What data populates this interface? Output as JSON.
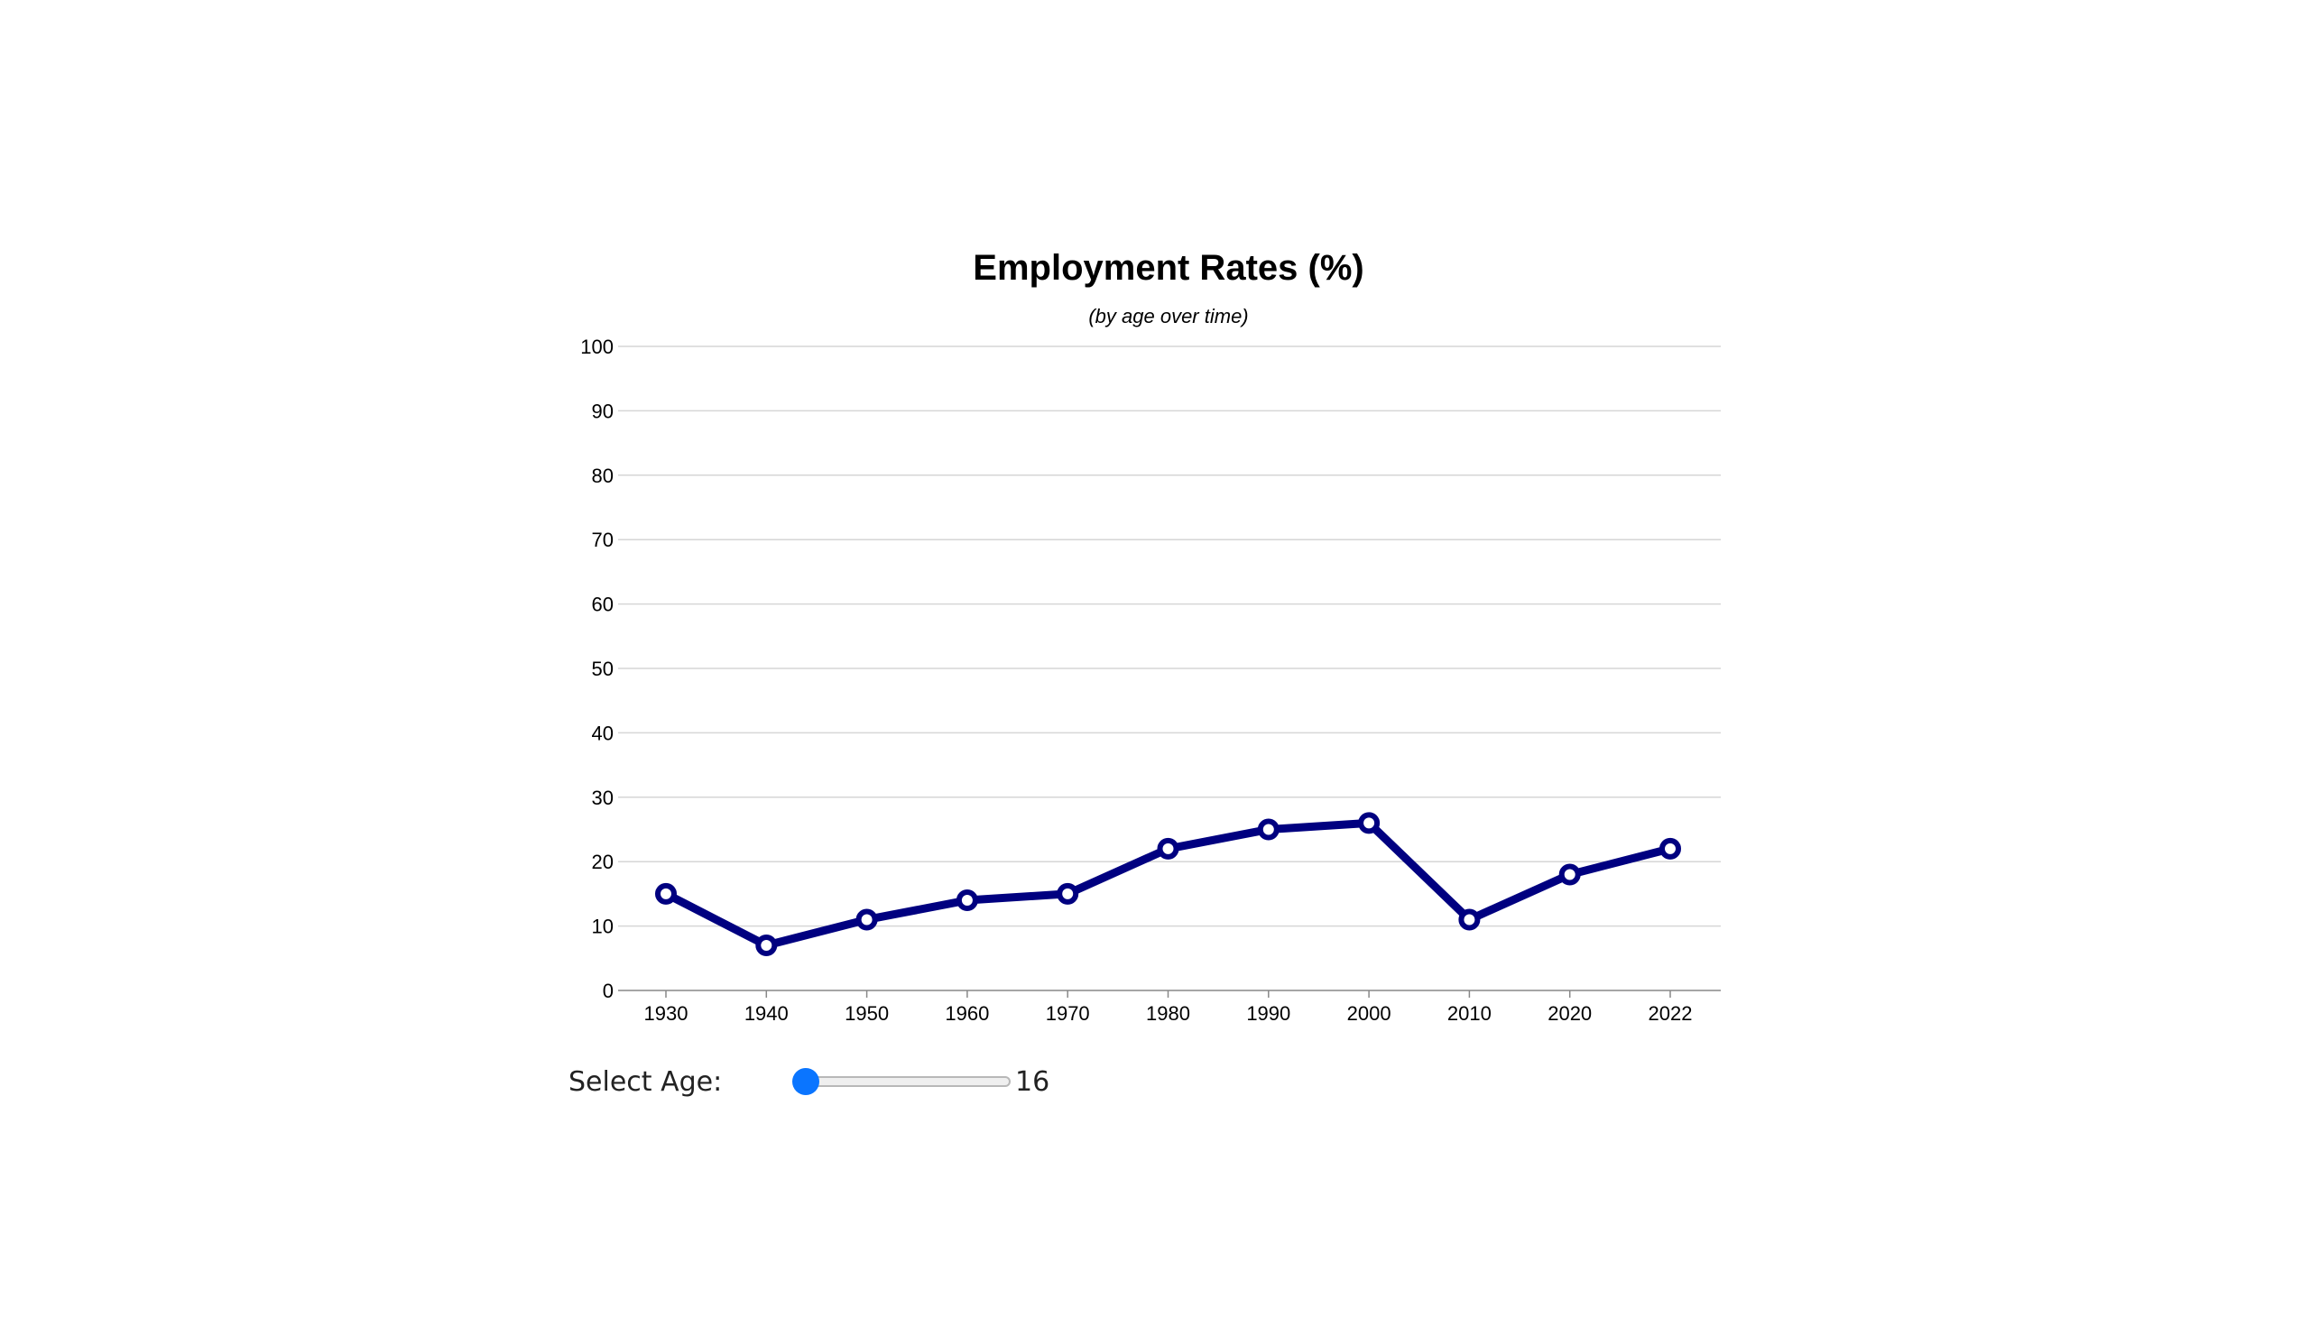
{
  "chart_data": {
    "type": "line",
    "title": "Employment Rates (%)",
    "subtitle": "(by age over time)",
    "xlabel": "",
    "ylabel": "",
    "x": [
      "1930",
      "1940",
      "1950",
      "1960",
      "1970",
      "1980",
      "1990",
      "2000",
      "2010",
      "2020",
      "2022"
    ],
    "series": [
      {
        "values": [
          15,
          7,
          11,
          14,
          15,
          22,
          25,
          26,
          11,
          18,
          22
        ],
        "color": "#000080"
      }
    ],
    "ylim": [
      0,
      100
    ],
    "yticks": [
      "0",
      "10",
      "20",
      "30",
      "40",
      "50",
      "60",
      "70",
      "80",
      "90",
      "100"
    ],
    "grid": true,
    "legend": "none"
  },
  "controls": {
    "age_label": "Select Age:",
    "age_value": "16",
    "slider_fraction": 0,
    "slider_color": "#0a75ff"
  }
}
